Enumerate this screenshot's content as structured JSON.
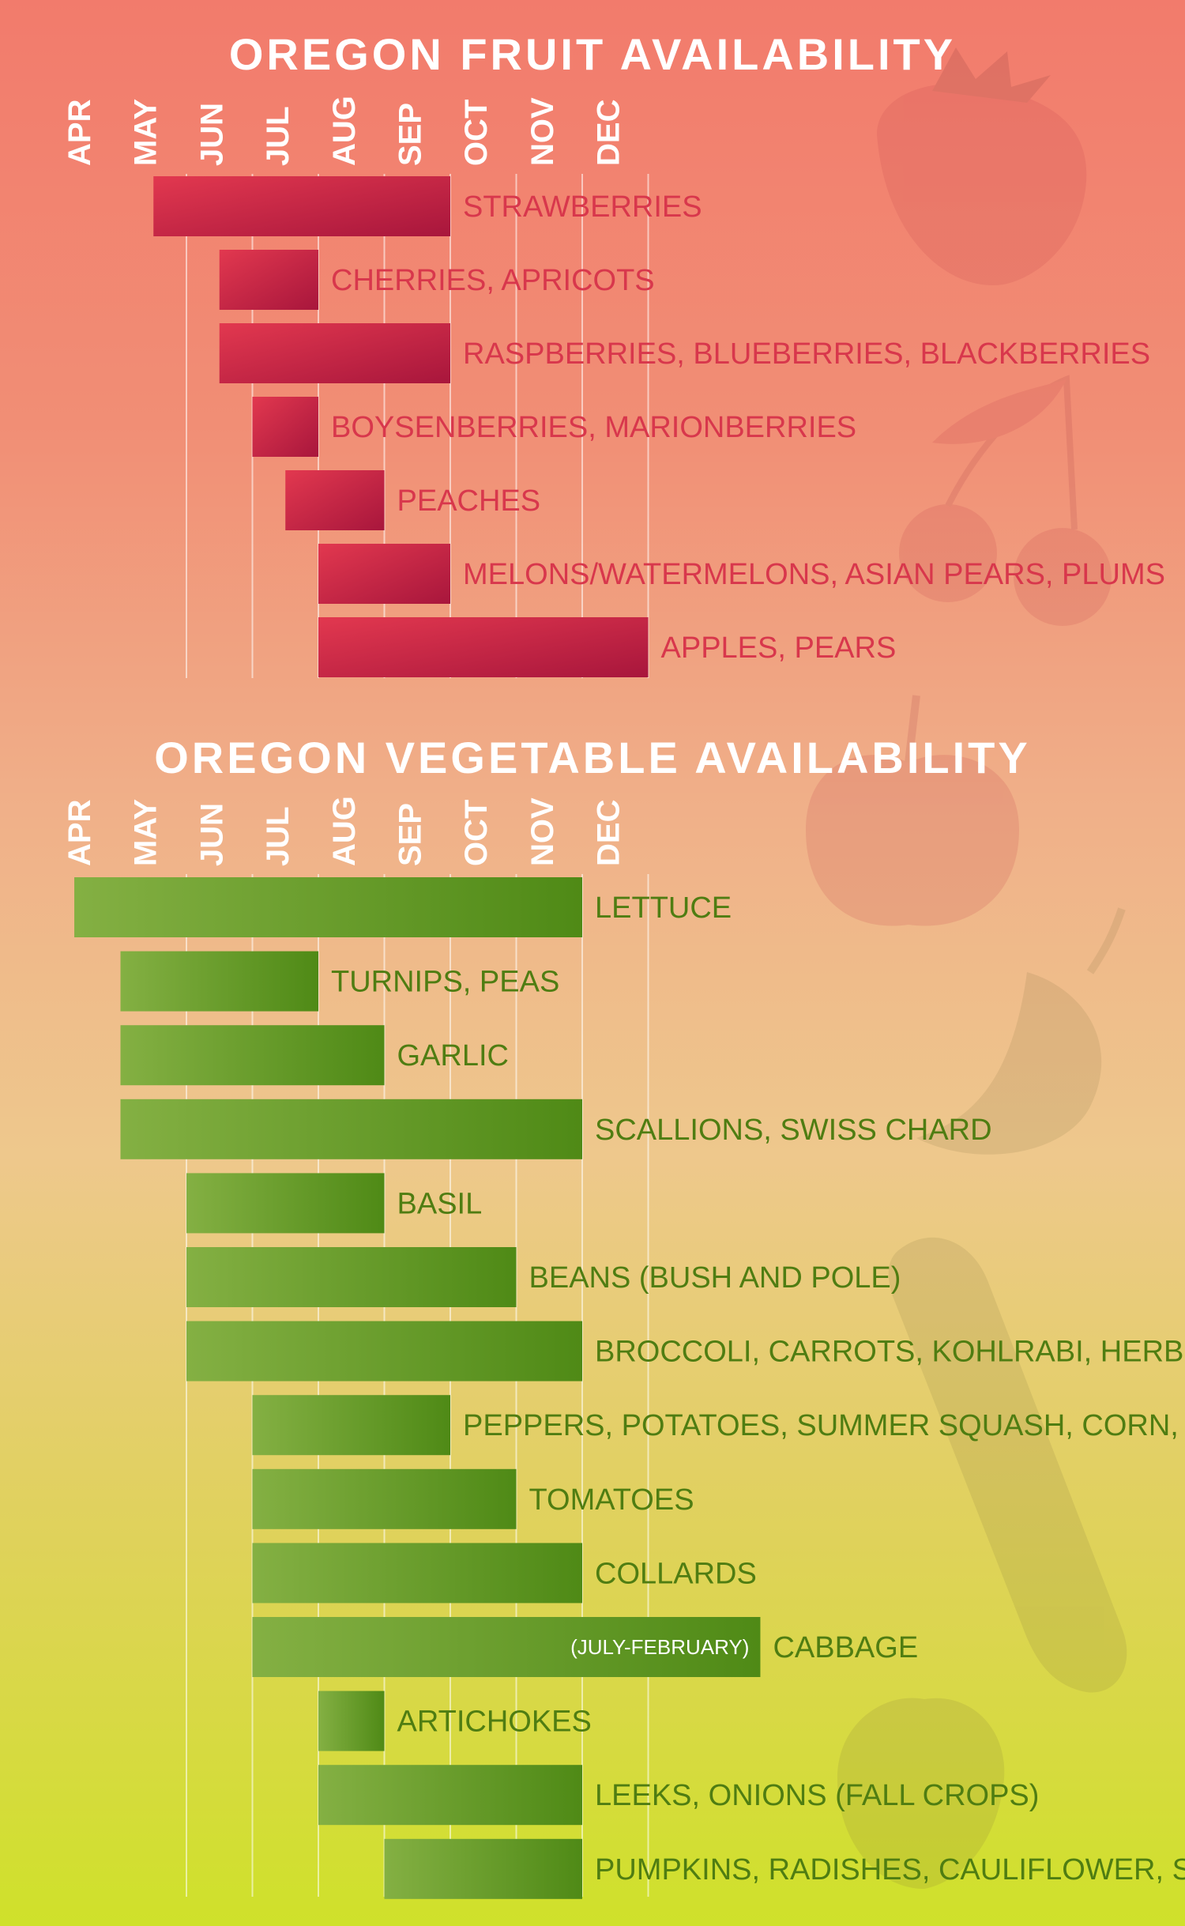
{
  "chart_data": [
    {
      "type": "bar",
      "title": "OREGON FRUIT AVAILABILITY",
      "months": [
        "APR",
        "MAY",
        "JUN",
        "JUL",
        "AUG",
        "SEP",
        "OCT",
        "NOV",
        "DEC"
      ],
      "colors": {
        "bar_start": "#e2384f",
        "bar_end": "#a8163c",
        "label": "#d8374c"
      },
      "items": [
        {
          "label": "STRAWBERRIES",
          "start": 1.5,
          "end": 6.0
        },
        {
          "label": "CHERRIES, APRICOTS",
          "start": 2.5,
          "end": 4.0
        },
        {
          "label": "RASPBERRIES, BLUEBERRIES, BLACKBERRIES",
          "start": 2.5,
          "end": 6.0
        },
        {
          "label": "BOYSENBERRIES, MARIONBERRIES",
          "start": 3.0,
          "end": 4.0
        },
        {
          "label": "PEACHES",
          "start": 3.5,
          "end": 5.0
        },
        {
          "label": "MELONS/WATERMELONS, ASIAN PEARS, PLUMS",
          "start": 4.0,
          "end": 6.0
        },
        {
          "label": "APPLES, PEARS",
          "start": 4.0,
          "end": 9.0
        }
      ]
    },
    {
      "type": "bar",
      "title": "OREGON VEGETABLE AVAILABILITY",
      "months": [
        "APR",
        "MAY",
        "JUN",
        "JUL",
        "AUG",
        "SEP",
        "OCT",
        "NOV",
        "DEC"
      ],
      "colors": {
        "bar_start": "#84b043",
        "bar_end": "#4f8a16",
        "label": "#4f7d12"
      },
      "items": [
        {
          "label": "LETTUCE",
          "start": 0.3,
          "end": 8.0
        },
        {
          "label": "TURNIPS, PEAS",
          "start": 1.0,
          "end": 4.0
        },
        {
          "label": "GARLIC",
          "start": 1.0,
          "end": 5.0
        },
        {
          "label": "SCALLIONS, SWISS CHARD",
          "start": 1.0,
          "end": 8.0
        },
        {
          "label": "BASIL",
          "start": 2.0,
          "end": 5.0
        },
        {
          "label": "BEANS (BUSH AND POLE)",
          "start": 2.0,
          "end": 7.0
        },
        {
          "label": "BROCCOLI, CARROTS, KOHLRABI, HERBS",
          "start": 2.0,
          "end": 8.0
        },
        {
          "label": "PEPPERS, POTATOES, SUMMER SQUASH, CORN, CUCUMBERS",
          "start": 3.0,
          "end": 6.0
        },
        {
          "label": "TOMATOES",
          "start": 3.0,
          "end": 7.0
        },
        {
          "label": "COLLARDS",
          "start": 3.0,
          "end": 8.0
        },
        {
          "label": "CABBAGE",
          "start": 3.0,
          "end": 10.7,
          "note": "(JULY-FEBRUARY)"
        },
        {
          "label": "ARTICHOKES",
          "start": 4.0,
          "end": 5.0
        },
        {
          "label": "LEEKS, ONIONS (FALL CROPS)",
          "start": 4.0,
          "end": 8.0
        },
        {
          "label": "PUMPKINS, RADISHES, CAULIFLOWER, SPINACH",
          "start": 5.0,
          "end": 8.0
        }
      ]
    }
  ],
  "decorations": [
    "strawberry-icon",
    "cherries-icon",
    "apple-icon",
    "pepper-icon",
    "corn-icon",
    "artichoke-icon"
  ]
}
